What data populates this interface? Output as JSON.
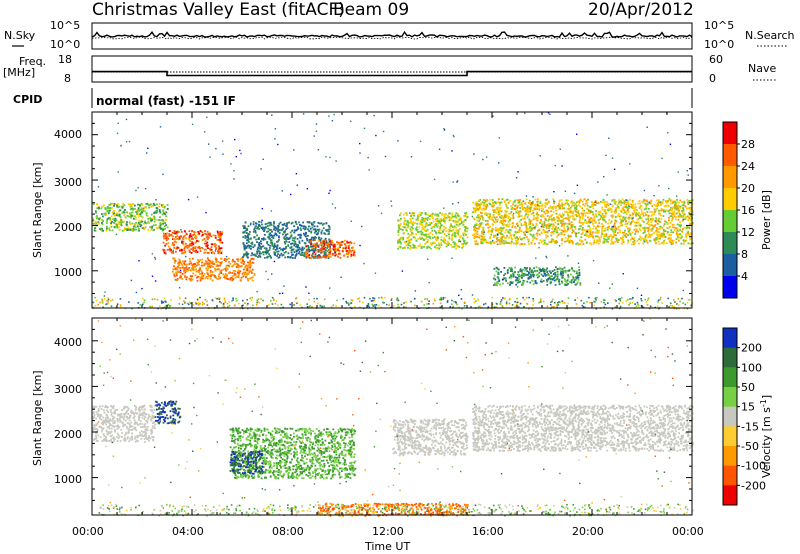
{
  "header": {
    "title": "Christmas Valley East (fitACF)",
    "beam": "Beam 09",
    "date": "20/Apr/2012"
  },
  "noise_panel": {
    "left_label": "N.Sky",
    "right_label": "N.Search",
    "tick_top": "10^5",
    "tick_bottom": "10^0",
    "right_tick_top": "10^5",
    "right_tick_bottom": "10^0"
  },
  "freq_panel": {
    "left_label_line1": "Freq.",
    "left_label_line2": "[MHz]",
    "right_label": "Nave",
    "left_ticks": [
      "18",
      "8"
    ],
    "right_ticks": [
      "60",
      "0"
    ]
  },
  "cpid_panel": {
    "label": "CPID",
    "mode": "normal (fast) -151 IF"
  },
  "power_panel": {
    "ylabel": "Slant Range [km]",
    "yticks": [
      "4000",
      "3000",
      "2000",
      "1000"
    ],
    "colorbar_label": "Power [dB]",
    "colorbar_ticks": [
      "28",
      "24",
      "20",
      "16",
      "12",
      "8",
      "4"
    ],
    "colorbar_colors": [
      "#ee0000",
      "#ff5a00",
      "#ff9900",
      "#ffcc00",
      "#66cc33",
      "#2e8b57",
      "#1b5fa0",
      "#0000ee"
    ]
  },
  "velocity_panel": {
    "ylabel": "Slant Range [km]",
    "yticks": [
      "4000",
      "3000",
      "2000",
      "1000"
    ],
    "colorbar_label": "Velocity [m s",
    "colorbar_label_sup": "-1",
    "colorbar_label_end": "]",
    "colorbar_ticks": [
      "200",
      "100",
      "50",
      "15",
      "-15",
      "-50",
      "-100",
      "-200"
    ],
    "colorbar_colors": [
      "#1030c0",
      "#2e6b3a",
      "#3a9a2e",
      "#77d044",
      "#c8c8c0",
      "#ffcc33",
      "#ff9900",
      "#ff5500",
      "#ee0000"
    ]
  },
  "xaxis": {
    "label": "Time UT",
    "ticks": [
      "00:00",
      "04:00",
      "08:00",
      "12:00",
      "16:00",
      "20:00",
      "00:00"
    ]
  },
  "chart_data": {
    "type": "heatmap",
    "x_range_hours": [
      0,
      24
    ],
    "y_range_km": [
      180,
      4500
    ],
    "frequency_mhz": [
      {
        "start_hour": 0,
        "end_hour": 3,
        "value": 12
      },
      {
        "start_hour": 3,
        "end_hour": 15,
        "value": 10.5
      },
      {
        "start_hour": 15,
        "end_hour": 24,
        "value": 12
      }
    ],
    "power_regions": [
      {
        "t0": 0.0,
        "t1": 3.0,
        "r0": 1900,
        "r1": 2500,
        "power_db": 14
      },
      {
        "t0": 2.8,
        "t1": 5.2,
        "r0": 1400,
        "r1": 1900,
        "power_db": 26
      },
      {
        "t0": 3.2,
        "t1": 6.5,
        "r0": 800,
        "r1": 1300,
        "power_db": 24
      },
      {
        "t0": 6.0,
        "t1": 9.5,
        "r0": 1300,
        "r1": 2100,
        "power_db": 8
      },
      {
        "t0": 8.5,
        "t1": 10.5,
        "r0": 1300,
        "r1": 1700,
        "power_db": 26
      },
      {
        "t0": 12.2,
        "t1": 15.0,
        "r0": 1500,
        "r1": 2300,
        "power_db": 16
      },
      {
        "t0": 15.2,
        "t1": 24.0,
        "r0": 1600,
        "r1": 2600,
        "power_db": 18
      },
      {
        "t0": 16.0,
        "t1": 19.5,
        "r0": 700,
        "r1": 1100,
        "power_db": 10
      }
    ],
    "velocity_regions": [
      {
        "t0": 0.0,
        "t1": 2.5,
        "r0": 1800,
        "r1": 2600,
        "velocity_ms": 0
      },
      {
        "t0": 2.5,
        "t1": 3.5,
        "r0": 2200,
        "r1": 2700,
        "velocity_ms": 200
      },
      {
        "t0": 5.5,
        "t1": 10.5,
        "r0": 1000,
        "r1": 2100,
        "velocity_ms": 50
      },
      {
        "t0": 5.5,
        "t1": 6.8,
        "r0": 1100,
        "r1": 1600,
        "velocity_ms": 200
      },
      {
        "t0": 12.0,
        "t1": 15.0,
        "r0": 1500,
        "r1": 2300,
        "velocity_ms": 0
      },
      {
        "t0": 15.2,
        "t1": 24.0,
        "r0": 1600,
        "r1": 2600,
        "velocity_ms": 0
      },
      {
        "t0": 9.0,
        "t1": 15.0,
        "r0": 180,
        "r1": 450,
        "velocity_ms": -100
      }
    ]
  }
}
